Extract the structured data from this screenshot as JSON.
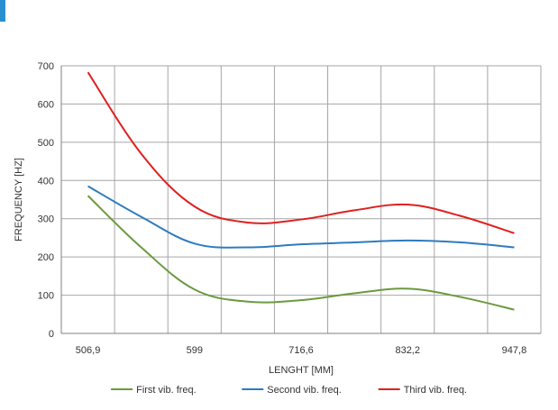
{
  "chart_data": {
    "type": "line",
    "title": "",
    "xlabel": "LENGHT [MM]",
    "ylabel": "FREQUENCY [HZ]",
    "categories": [
      "506,9",
      "",
      "599",
      "",
      "716,6",
      "",
      "832,2",
      "",
      "947,8"
    ],
    "x_tick_labels": [
      "506,9",
      "599",
      "716,6",
      "832,2",
      "947,8"
    ],
    "ylim": [
      0,
      700
    ],
    "y_ticks": [
      0,
      100,
      200,
      300,
      400,
      500,
      600,
      700
    ],
    "grid": true,
    "smooth": true,
    "legend_position": "bottom",
    "series": [
      {
        "name": "First vib. freq.",
        "color": "#6b9a3f",
        "values": [
          360,
          225,
          115,
          83,
          87,
          105,
          117,
          95,
          62
        ]
      },
      {
        "name": "Second vib. freq.",
        "color": "#2e7bbf",
        "values": [
          385,
          305,
          235,
          225,
          233,
          238,
          243,
          238,
          225
        ]
      },
      {
        "name": "Third vib. freq.",
        "color": "#e02020",
        "values": [
          683,
          470,
          332,
          290,
          298,
          322,
          337,
          307,
          262
        ]
      }
    ]
  },
  "colors": {
    "grid": "#a6a6a6",
    "axis": "#808080",
    "text": "#333333",
    "corner_accent": "#2a8fd0"
  }
}
